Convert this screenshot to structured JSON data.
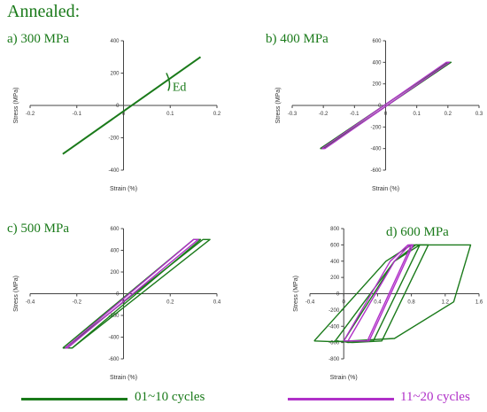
{
  "figure": {
    "title": "Annealed:",
    "colors": {
      "green": "#1a7a1a",
      "magenta": "#b030c8",
      "axis": "#444444"
    }
  },
  "legend": [
    {
      "label": "01~10 cycles",
      "color": "#1a7a1a"
    },
    {
      "label": "11~20 cycles",
      "color": "#b030c8"
    }
  ],
  "chart_data": [
    {
      "type": "line",
      "title": "a) 300 MPa",
      "xlabel": "Strain (%)",
      "ylabel": "Stress (MPa)",
      "xlim": [
        -0.2,
        0.2
      ],
      "ylim": [
        -400,
        400
      ],
      "xticks": [
        -0.2,
        -0.1,
        0,
        0.1,
        0.2
      ],
      "xtick_labels": [
        "-0.2",
        "-0.1",
        "0",
        "0.1",
        "0.2"
      ],
      "yticks": [
        -400,
        -200,
        0,
        200,
        400
      ],
      "ytick_labels": [
        "-400",
        "-200",
        "0",
        "200",
        "400"
      ],
      "annotation": "Ed",
      "series": [
        {
          "color": "#1a7a1a",
          "x": [
            -0.13,
            0.165
          ],
          "y": [
            -300,
            300
          ]
        }
      ]
    },
    {
      "type": "line",
      "title": "b) 400 MPa",
      "xlabel": "Strain (%)",
      "ylabel": "Stress (MPa)",
      "xlim": [
        -0.3,
        0.3
      ],
      "ylim": [
        -600,
        600
      ],
      "xticks": [
        -0.3,
        -0.2,
        -0.1,
        0,
        0.1,
        0.2,
        0.3
      ],
      "xtick_labels": [
        "-0.3",
        "-0.2",
        "-0.1",
        "0",
        "0.1",
        "0.2",
        "0.3"
      ],
      "yticks": [
        -600,
        -400,
        -200,
        0,
        200,
        400,
        600
      ],
      "ytick_labels": [
        "-600",
        "-400",
        "-200",
        "0",
        "200",
        "400",
        "600"
      ],
      "series": [
        {
          "color": "#1a7a1a",
          "x": [
            -0.21,
            0.2,
            0.21,
            -0.2,
            -0.21
          ],
          "y": [
            -400,
            400,
            400,
            -400,
            -400
          ]
        },
        {
          "color": "#b030c8",
          "x": [
            -0.205,
            0.195,
            0.205,
            -0.195,
            -0.205
          ],
          "y": [
            -400,
            400,
            400,
            -400,
            -400
          ]
        }
      ]
    },
    {
      "type": "line",
      "title": "c) 500 MPa",
      "xlabel": "Strain (%)",
      "ylabel": "Stress (MPa)",
      "xlim": [
        -0.4,
        0.4
      ],
      "ylim": [
        -600,
        600
      ],
      "xticks": [
        -0.4,
        -0.2,
        0,
        0.2,
        0.4
      ],
      "xtick_labels": [
        "-0.4",
        "-0.2",
        "0",
        "0.2",
        "0.4"
      ],
      "yticks": [
        -600,
        -400,
        -200,
        0,
        200,
        400,
        600
      ],
      "ytick_labels": [
        "-600",
        "-400",
        "-200",
        "0",
        "200",
        "400",
        "600"
      ],
      "series": [
        {
          "color": "#1a7a1a",
          "x": [
            -0.25,
            0.34,
            0.37,
            -0.22,
            -0.25
          ],
          "y": [
            -500,
            500,
            500,
            -500,
            -500
          ]
        },
        {
          "color": "#1a7a1a",
          "x": [
            -0.26,
            0.3,
            0.33,
            -0.22,
            -0.26
          ],
          "y": [
            -500,
            500,
            500,
            -500,
            -500
          ]
        },
        {
          "color": "#b030c8",
          "x": [
            -0.25,
            0.3,
            0.32,
            -0.24,
            -0.25
          ],
          "y": [
            -500,
            500,
            500,
            -500,
            -500
          ]
        }
      ]
    },
    {
      "type": "line",
      "title": "d) 600 MPa",
      "xlabel": "Strain (%)",
      "ylabel": "Stress (MPa)",
      "xlim": [
        -0.4,
        1.6
      ],
      "ylim": [
        -800,
        800
      ],
      "xticks": [
        -0.4,
        0,
        0.4,
        0.8,
        1.2,
        1.6
      ],
      "xtick_labels": [
        "-0.4",
        "0",
        "0.4",
        "0.8",
        "1.2",
        "1.6"
      ],
      "yticks": [
        -800,
        -600,
        -400,
        -200,
        0,
        200,
        400,
        600,
        800
      ],
      "ytick_labels": [
        "-800",
        "-600",
        "-400",
        "-200",
        "0",
        "200",
        "400",
        "600",
        "800"
      ],
      "series": [
        {
          "color": "#1a7a1a",
          "x": [
            -0.35,
            0.5,
            0.8,
            1.5,
            1.3,
            0.6,
            -0.1,
            -0.35
          ],
          "y": [
            -580,
            400,
            600,
            600,
            -100,
            -550,
            -590,
            -580
          ]
        },
        {
          "color": "#1a7a1a",
          "x": [
            -0.1,
            0.6,
            0.9,
            1.0,
            0.45,
            0.1,
            -0.1
          ],
          "y": [
            -580,
            400,
            600,
            600,
            -580,
            -600,
            -580
          ]
        },
        {
          "color": "#1a7a1a",
          "x": [
            0.0,
            0.6,
            0.85,
            0.9,
            0.35,
            0.05,
            0.0
          ],
          "y": [
            -580,
            400,
            600,
            600,
            -580,
            -600,
            -580
          ]
        },
        {
          "color": "#b030c8",
          "x": [
            0.05,
            0.6,
            0.78,
            0.82,
            0.3,
            0.05
          ],
          "y": [
            -580,
            400,
            600,
            600,
            -580,
            -580
          ]
        },
        {
          "color": "#b030c8",
          "x": [
            0.0,
            0.55,
            0.76,
            0.8,
            0.28,
            0.0
          ],
          "y": [
            -580,
            400,
            600,
            600,
            -580,
            -580
          ]
        }
      ]
    }
  ]
}
